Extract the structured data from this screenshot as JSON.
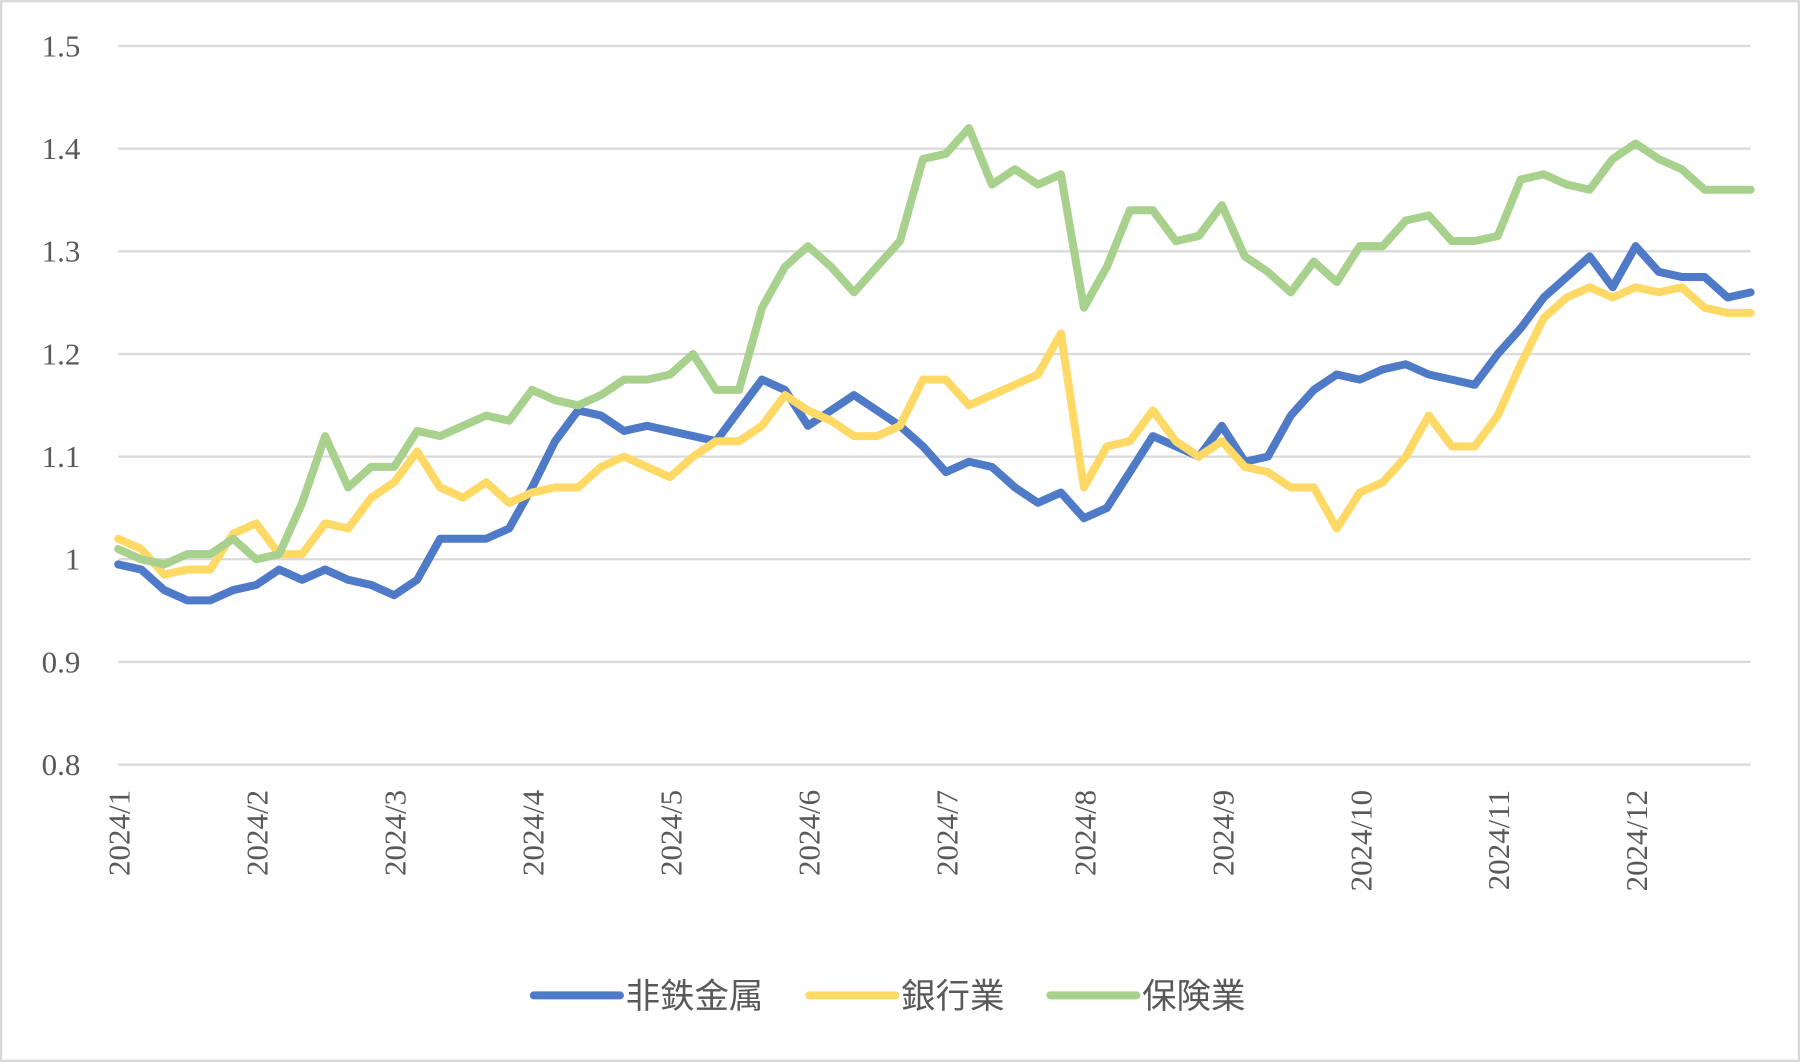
{
  "chart_data": {
    "type": "line",
    "categories": [
      "2024/1",
      null,
      null,
      null,
      null,
      null,
      "2024/2",
      null,
      null,
      null,
      null,
      null,
      "2024/3",
      null,
      null,
      null,
      null,
      null,
      "2024/4",
      null,
      null,
      null,
      null,
      null,
      "2024/5",
      null,
      null,
      null,
      null,
      null,
      "2024/6",
      null,
      null,
      null,
      null,
      null,
      "2024/7",
      null,
      null,
      null,
      null,
      null,
      "2024/8",
      null,
      null,
      null,
      null,
      null,
      "2024/9",
      null,
      null,
      null,
      null,
      null,
      "2024/10",
      null,
      null,
      null,
      null,
      null,
      "2024/11",
      null,
      null,
      null,
      null,
      null,
      "2024/12",
      null,
      null,
      null,
      null,
      null
    ],
    "series": [
      {
        "name": "非鉄金属",
        "color": "#4f7ac7",
        "values": [
          0.995,
          0.99,
          0.97,
          0.96,
          0.96,
          0.97,
          0.975,
          0.99,
          0.98,
          0.99,
          0.98,
          0.975,
          0.965,
          0.98,
          1.02,
          1.02,
          1.02,
          1.03,
          1.07,
          1.115,
          1.145,
          1.14,
          1.125,
          1.13,
          1.125,
          1.12,
          1.115,
          1.145,
          1.175,
          1.165,
          1.13,
          1.145,
          1.16,
          1.145,
          1.13,
          1.11,
          1.085,
          1.095,
          1.09,
          1.07,
          1.055,
          1.065,
          1.04,
          1.05,
          1.085,
          1.12,
          1.11,
          1.1,
          1.13,
          1.095,
          1.1,
          1.14,
          1.165,
          1.18,
          1.175,
          1.185,
          1.19,
          1.18,
          1.175,
          1.17,
          1.2,
          1.225,
          1.255,
          1.275,
          1.295,
          1.265,
          1.305,
          1.28,
          1.275,
          1.275,
          1.255,
          1.26
        ]
      },
      {
        "name": "銀行業",
        "color": "#ffd966",
        "values": [
          1.02,
          1.01,
          0.985,
          0.99,
          0.99,
          1.025,
          1.035,
          1.005,
          1.005,
          1.035,
          1.03,
          1.06,
          1.075,
          1.105,
          1.07,
          1.06,
          1.075,
          1.055,
          1.065,
          1.07,
          1.07,
          1.09,
          1.1,
          1.09,
          1.08,
          1.1,
          1.115,
          1.115,
          1.13,
          1.16,
          1.145,
          1.135,
          1.12,
          1.12,
          1.13,
          1.175,
          1.175,
          1.15,
          1.16,
          1.17,
          1.18,
          1.22,
          1.07,
          1.11,
          1.115,
          1.145,
          1.115,
          1.1,
          1.115,
          1.09,
          1.085,
          1.07,
          1.07,
          1.03,
          1.065,
          1.075,
          1.1,
          1.14,
          1.11,
          1.11,
          1.14,
          1.19,
          1.235,
          1.255,
          1.265,
          1.255,
          1.265,
          1.26,
          1.265,
          1.245,
          1.24,
          1.24
        ]
      },
      {
        "name": "保険業",
        "color": "#a9d18e",
        "values": [
          1.01,
          1.0,
          0.995,
          1.005,
          1.005,
          1.02,
          1.0,
          1.005,
          1.055,
          1.12,
          1.07,
          1.09,
          1.09,
          1.125,
          1.12,
          1.13,
          1.14,
          1.135,
          1.165,
          1.155,
          1.15,
          1.16,
          1.175,
          1.175,
          1.18,
          1.2,
          1.165,
          1.165,
          1.245,
          1.285,
          1.305,
          1.285,
          1.26,
          1.285,
          1.31,
          1.39,
          1.395,
          1.42,
          1.365,
          1.38,
          1.365,
          1.375,
          1.245,
          1.285,
          1.34,
          1.34,
          1.31,
          1.315,
          1.345,
          1.295,
          1.28,
          1.26,
          1.29,
          1.27,
          1.305,
          1.305,
          1.33,
          1.335,
          1.31,
          1.31,
          1.315,
          1.37,
          1.375,
          1.365,
          1.36,
          1.39,
          1.405,
          1.39,
          1.38,
          1.36,
          1.36,
          1.36
        ]
      }
    ],
    "ylim": [
      0.8,
      1.5
    ],
    "yticks": [
      0.8,
      0.9,
      1,
      1.1,
      1.2,
      1.3,
      1.4,
      1.5
    ],
    "grid": true,
    "legend": "bottom"
  }
}
